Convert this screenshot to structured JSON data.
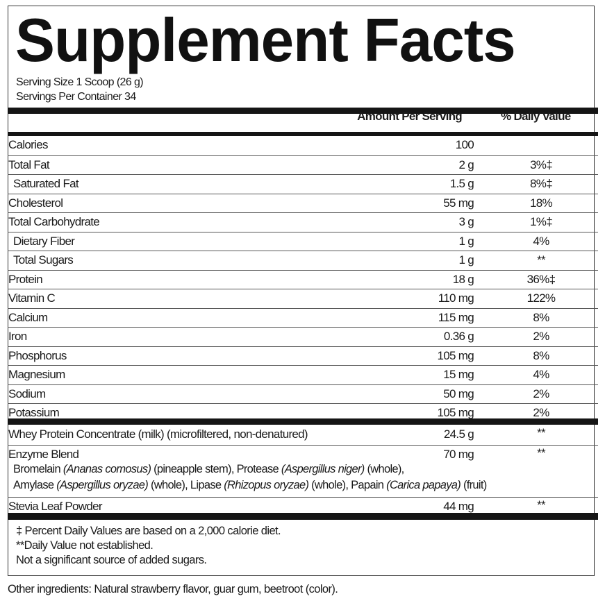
{
  "title": "Supplement Facts",
  "serving_size": "Serving Size 1 Scoop (26 g)",
  "servings_per_container": "Servings Per Container 34",
  "header": {
    "amount": "Amount Per Serving",
    "daily_value": "% Daily Value"
  },
  "nutrients": [
    {
      "name": "Calories",
      "amount": "100",
      "dv": "",
      "indent": false
    },
    {
      "name": "Total Fat",
      "amount": "2 g",
      "dv": "3%‡",
      "indent": false
    },
    {
      "name": "Saturated Fat",
      "amount": "1.5 g",
      "dv": "8%‡",
      "indent": true
    },
    {
      "name": "Cholesterol",
      "amount": "55 mg",
      "dv": "18%",
      "indent": false
    },
    {
      "name": "Total Carbohydrate",
      "amount": "3 g",
      "dv": "1%‡",
      "indent": false
    },
    {
      "name": "Dietary Fiber",
      "amount": "1 g",
      "dv": "4%",
      "indent": true
    },
    {
      "name": "Total Sugars",
      "amount": "1 g",
      "dv": "**",
      "indent": true
    },
    {
      "name": "Protein",
      "amount": "18 g",
      "dv": "36%‡",
      "indent": false
    },
    {
      "name": "Vitamin C",
      "amount": "110 mg",
      "dv": "122%",
      "indent": false
    },
    {
      "name": "Calcium",
      "amount": "115 mg",
      "dv": "8%",
      "indent": false
    },
    {
      "name": "Iron",
      "amount": "0.36 g",
      "dv": "2%",
      "indent": false
    },
    {
      "name": "Phosphorus",
      "amount": "105 mg",
      "dv": "8%",
      "indent": false
    },
    {
      "name": "Magnesium",
      "amount": "15 mg",
      "dv": "4%",
      "indent": false
    },
    {
      "name": "Sodium",
      "amount": "50 mg",
      "dv": "2%",
      "indent": false
    },
    {
      "name": "Potassium",
      "amount": "105 mg",
      "dv": "2%",
      "indent": false
    }
  ],
  "other_items": [
    {
      "name": "Whey Protein Concentrate (milk) (microfiltered, non-denatured)",
      "amount": "24.5 g",
      "dv": "**"
    },
    {
      "name": "Enzyme Blend",
      "amount": "70 mg",
      "dv": "**"
    },
    {
      "name": "Stevia Leaf Powder",
      "amount": "44 mg",
      "dv": "**"
    }
  ],
  "enzyme_description": [
    [
      {
        "text": "Bromelain ",
        "italic": false
      },
      {
        "text": "(Ananas comosus)",
        "italic": true
      },
      {
        "text": " (pineapple stem), Protease ",
        "italic": false
      },
      {
        "text": "(Aspergillus niger)",
        "italic": true
      },
      {
        "text": " (whole),",
        "italic": false
      }
    ],
    [
      {
        "text": "Amylase ",
        "italic": false
      },
      {
        "text": "(Aspergillus oryzae)",
        "italic": true
      },
      {
        "text": " (whole), Lipase ",
        "italic": false
      },
      {
        "text": "(Rhizopus oryzae)",
        "italic": true
      },
      {
        "text": " (whole), Papain ",
        "italic": false
      },
      {
        "text": "(Carica papaya)",
        "italic": true
      },
      {
        "text": " (fruit)",
        "italic": false
      }
    ]
  ],
  "footnotes": [
    "‡ Percent Daily Values are based on a 2,000 calorie diet.",
    "**Daily Value not established.",
    "Not a significant source of added sugars."
  ],
  "other_ingredients": "Other ingredients: Natural strawberry flavor, guar gum, beetroot (color)."
}
